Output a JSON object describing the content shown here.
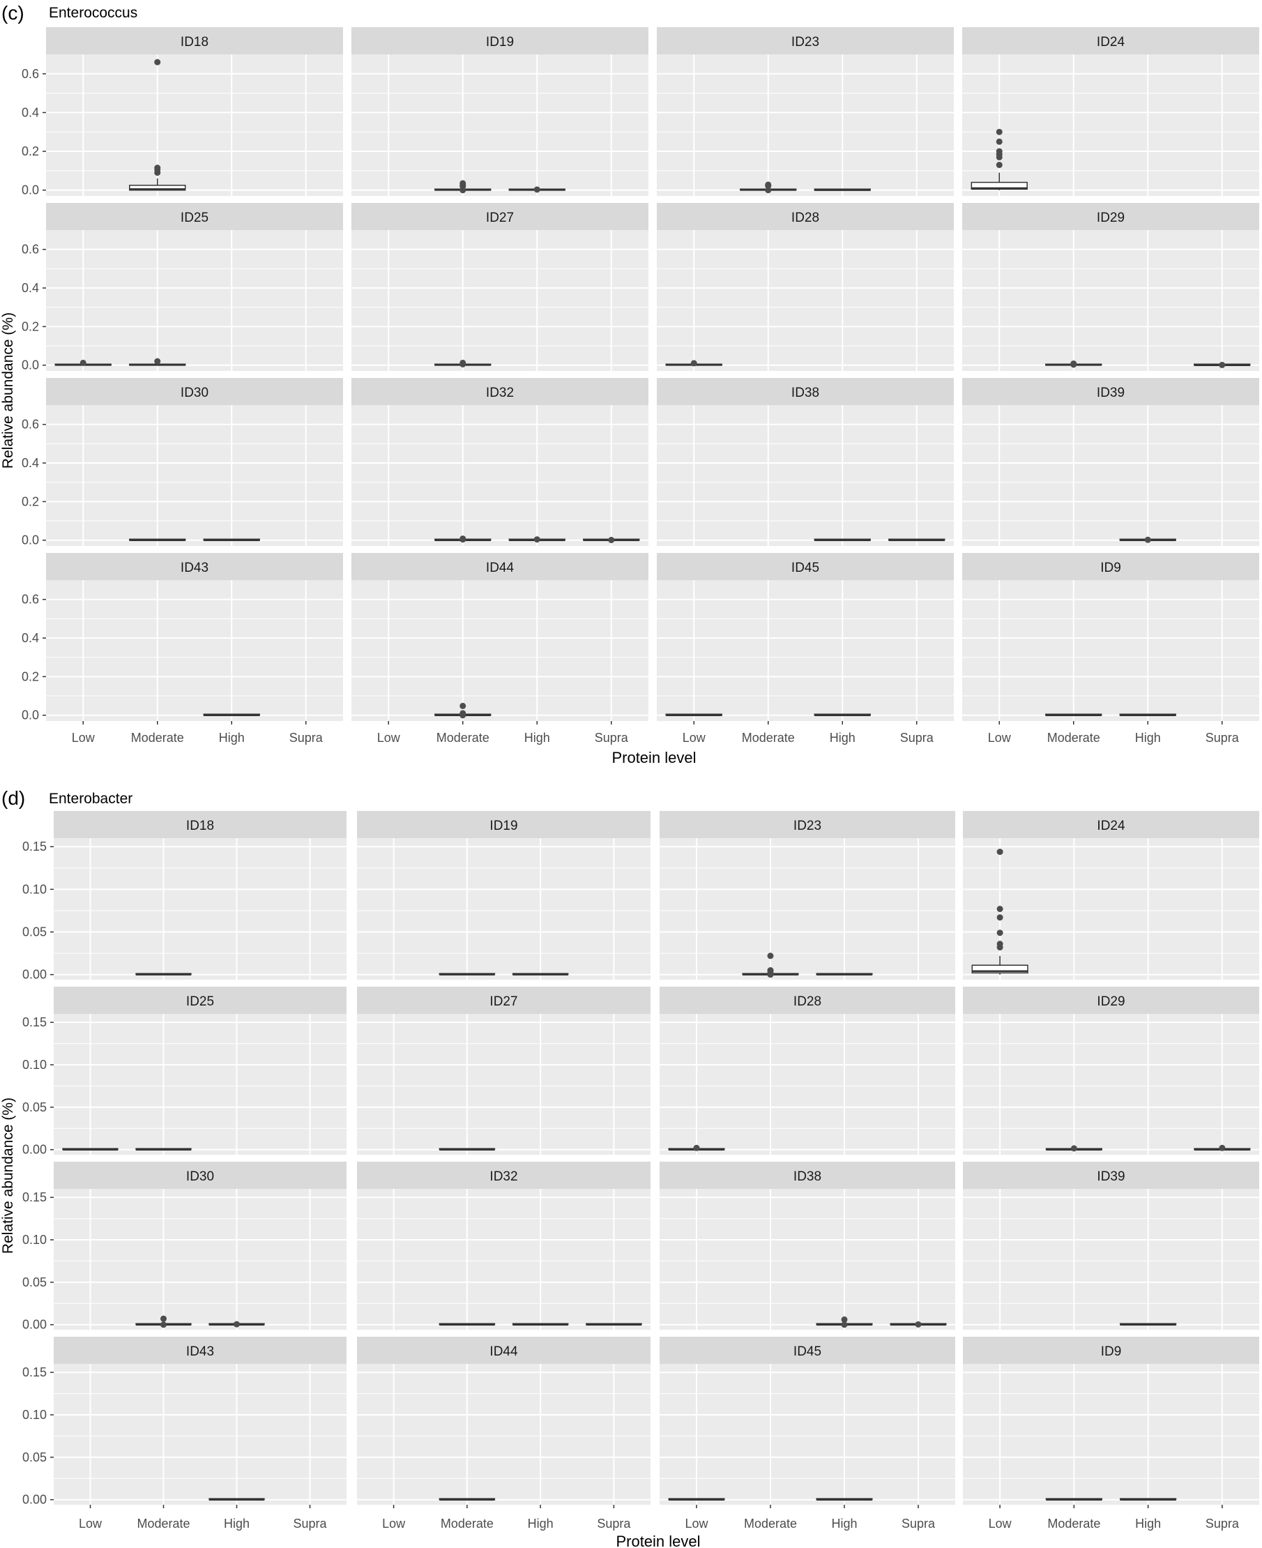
{
  "chart_data": [
    {
      "type": "boxplot",
      "panel_label": "(c)",
      "title": "Enterococcus",
      "xlabel": "Protein level",
      "ylabel": "Relative abundance (%)",
      "ylim": [
        -0.03,
        0.7
      ],
      "yticks": [
        0.0,
        0.2,
        0.4,
        0.6
      ],
      "ytick_labels": [
        "0.0",
        "0.2",
        "0.4",
        "0.6"
      ],
      "categories": [
        "Low",
        "Moderate",
        "High",
        "Supra"
      ],
      "grid": true,
      "facets": [
        {
          "id": "ID18",
          "boxes": [
            {
              "category": "Moderate",
              "q1": 0.0,
              "median": 0.005,
              "q3": 0.025,
              "whisker_low": 0.0,
              "whisker_high": 0.06,
              "outliers": [
                0.66,
                0.115,
                0.105,
                0.09
              ]
            }
          ]
        },
        {
          "id": "ID19",
          "boxes": [
            {
              "category": "Moderate",
              "q1": 0.0,
              "median": 0.001,
              "q3": 0.003,
              "whisker_low": 0.0,
              "whisker_high": 0.005,
              "outliers": [
                0.035,
                0.025,
                0.02,
                0.0
              ]
            },
            {
              "category": "High",
              "q1": 0.0,
              "median": 0.001,
              "q3": 0.003,
              "whisker_low": 0.0,
              "whisker_high": 0.004,
              "outliers": [
                0.003
              ]
            }
          ]
        },
        {
          "id": "ID23",
          "boxes": [
            {
              "category": "Moderate",
              "q1": 0.0,
              "median": 0.001,
              "q3": 0.004,
              "whisker_low": 0.0,
              "whisker_high": 0.006,
              "outliers": [
                0.028,
                0.022,
                0.0
              ]
            },
            {
              "category": "High",
              "q1": 0.0,
              "median": 0.0,
              "q3": 0.001,
              "whisker_low": 0.0,
              "whisker_high": 0.002,
              "outliers": []
            }
          ]
        },
        {
          "id": "ID24",
          "boxes": [
            {
              "category": "Low",
              "q1": 0.005,
              "median": 0.01,
              "q3": 0.04,
              "whisker_low": 0.0,
              "whisker_high": 0.09,
              "outliers": [
                0.3,
                0.25,
                0.2,
                0.185,
                0.17,
                0.13
              ]
            }
          ]
        },
        {
          "id": "ID25",
          "boxes": [
            {
              "category": "Low",
              "q1": 0.0,
              "median": 0.001,
              "q3": 0.004,
              "whisker_low": 0.0,
              "whisker_high": 0.006,
              "outliers": [
                0.012
              ]
            },
            {
              "category": "Moderate",
              "q1": 0.0,
              "median": 0.001,
              "q3": 0.003,
              "whisker_low": 0.0,
              "whisker_high": 0.005,
              "outliers": [
                0.02
              ]
            }
          ]
        },
        {
          "id": "ID27",
          "boxes": [
            {
              "category": "Moderate",
              "q1": 0.0,
              "median": 0.001,
              "q3": 0.003,
              "whisker_low": 0.0,
              "whisker_high": 0.004,
              "outliers": [
                0.012,
                0.005
              ]
            }
          ]
        },
        {
          "id": "ID28",
          "boxes": [
            {
              "category": "Low",
              "q1": 0.0,
              "median": 0.001,
              "q3": 0.003,
              "whisker_low": 0.0,
              "whisker_high": 0.004,
              "outliers": [
                0.01
              ]
            }
          ]
        },
        {
          "id": "ID29",
          "boxes": [
            {
              "category": "Moderate",
              "q1": 0.0,
              "median": 0.001,
              "q3": 0.003,
              "whisker_low": 0.0,
              "whisker_high": 0.004,
              "outliers": [
                0.008,
                0.003
              ]
            },
            {
              "category": "Supra",
              "q1": 0.0,
              "median": 0.0,
              "q3": 0.002,
              "whisker_low": 0.0,
              "whisker_high": 0.003,
              "outliers": [
                0.001
              ]
            }
          ]
        },
        {
          "id": "ID30",
          "boxes": [
            {
              "category": "Moderate",
              "q1": 0.0,
              "median": 0.0,
              "q3": 0.001,
              "whisker_low": 0.0,
              "whisker_high": 0.001,
              "outliers": []
            },
            {
              "category": "High",
              "q1": 0.0,
              "median": 0.0,
              "q3": 0.001,
              "whisker_low": 0.0,
              "whisker_high": 0.001,
              "outliers": []
            }
          ]
        },
        {
          "id": "ID32",
          "boxes": [
            {
              "category": "Moderate",
              "q1": 0.0,
              "median": 0.0,
              "q3": 0.002,
              "whisker_low": 0.0,
              "whisker_high": 0.003,
              "outliers": [
                0.008,
                0.004
              ]
            },
            {
              "category": "High",
              "q1": 0.0,
              "median": 0.0,
              "q3": 0.002,
              "whisker_low": 0.0,
              "whisker_high": 0.003,
              "outliers": [
                0.004
              ]
            },
            {
              "category": "Supra",
              "q1": 0.0,
              "median": 0.0,
              "q3": 0.001,
              "whisker_low": 0.0,
              "whisker_high": 0.002,
              "outliers": [
                0.001
              ]
            }
          ]
        },
        {
          "id": "ID38",
          "boxes": [
            {
              "category": "High",
              "q1": 0.0,
              "median": 0.0,
              "q3": 0.001,
              "whisker_low": 0.0,
              "whisker_high": 0.001,
              "outliers": []
            },
            {
              "category": "Supra",
              "q1": 0.0,
              "median": 0.0,
              "q3": 0.001,
              "whisker_low": 0.0,
              "whisker_high": 0.001,
              "outliers": []
            }
          ]
        },
        {
          "id": "ID39",
          "boxes": [
            {
              "category": "High",
              "q1": 0.0,
              "median": 0.0,
              "q3": 0.001,
              "whisker_low": 0.0,
              "whisker_high": 0.002,
              "outliers": [
                0.002
              ]
            }
          ]
        },
        {
          "id": "ID43",
          "boxes": [
            {
              "category": "High",
              "q1": 0.0,
              "median": 0.0,
              "q3": 0.001,
              "whisker_low": 0.0,
              "whisker_high": 0.001,
              "outliers": []
            }
          ]
        },
        {
          "id": "ID44",
          "boxes": [
            {
              "category": "Moderate",
              "q1": 0.0,
              "median": 0.0,
              "q3": 0.003,
              "whisker_low": 0.0,
              "whisker_high": 0.005,
              "outliers": [
                0.048,
                0.01,
                0.0
              ]
            }
          ]
        },
        {
          "id": "ID45",
          "boxes": [
            {
              "category": "Low",
              "q1": 0.0,
              "median": 0.0,
              "q3": 0.001,
              "whisker_low": 0.0,
              "whisker_high": 0.001,
              "outliers": []
            },
            {
              "category": "High",
              "q1": 0.0,
              "median": 0.0,
              "q3": 0.001,
              "whisker_low": 0.0,
              "whisker_high": 0.001,
              "outliers": []
            }
          ]
        },
        {
          "id": "ID9",
          "boxes": [
            {
              "category": "Moderate",
              "q1": 0.0,
              "median": 0.0,
              "q3": 0.001,
              "whisker_low": 0.0,
              "whisker_high": 0.001,
              "outliers": []
            },
            {
              "category": "High",
              "q1": 0.0,
              "median": 0.0,
              "q3": 0.001,
              "whisker_low": 0.0,
              "whisker_high": 0.001,
              "outliers": []
            }
          ]
        }
      ]
    },
    {
      "type": "boxplot",
      "panel_label": "(d)",
      "title": "Enterobacter",
      "xlabel": "Protein level",
      "ylabel": "Relative abundance (%)",
      "ylim": [
        -0.006,
        0.16
      ],
      "yticks": [
        0.0,
        0.05,
        0.1,
        0.15
      ],
      "ytick_labels": [
        "0.00",
        "0.05",
        "0.10",
        "0.15"
      ],
      "categories": [
        "Low",
        "Moderate",
        "High",
        "Supra"
      ],
      "grid": true,
      "facets": [
        {
          "id": "ID18",
          "boxes": [
            {
              "category": "Moderate",
              "q1": 0.0,
              "median": 0.0,
              "q3": 0.0002,
              "whisker_low": 0.0,
              "whisker_high": 0.0003,
              "outliers": []
            }
          ]
        },
        {
          "id": "ID19",
          "boxes": [
            {
              "category": "Moderate",
              "q1": 0.0,
              "median": 0.0,
              "q3": 0.0002,
              "whisker_low": 0.0,
              "whisker_high": 0.0003,
              "outliers": []
            },
            {
              "category": "High",
              "q1": 0.0,
              "median": 0.0,
              "q3": 0.0002,
              "whisker_low": 0.0,
              "whisker_high": 0.0003,
              "outliers": []
            }
          ]
        },
        {
          "id": "ID23",
          "boxes": [
            {
              "category": "Moderate",
              "q1": 0.0,
              "median": 0.0,
              "q3": 0.0005,
              "whisker_low": 0.0,
              "whisker_high": 0.001,
              "outliers": [
                0.022,
                0.005,
                0.003,
                0.0
              ]
            },
            {
              "category": "High",
              "q1": 0.0,
              "median": 0.0,
              "q3": 0.0002,
              "whisker_low": 0.0,
              "whisker_high": 0.0003,
              "outliers": []
            }
          ]
        },
        {
          "id": "ID24",
          "boxes": [
            {
              "category": "Low",
              "q1": 0.002,
              "median": 0.004,
              "q3": 0.011,
              "whisker_low": 0.0,
              "whisker_high": 0.022,
              "outliers": [
                0.144,
                0.077,
                0.067,
                0.049,
                0.036,
                0.032
              ]
            }
          ]
        },
        {
          "id": "ID25",
          "boxes": [
            {
              "category": "Low",
              "q1": 0.0,
              "median": 0.0,
              "q3": 0.0002,
              "whisker_low": 0.0,
              "whisker_high": 0.0003,
              "outliers": []
            },
            {
              "category": "Moderate",
              "q1": 0.0,
              "median": 0.0,
              "q3": 0.0002,
              "whisker_low": 0.0,
              "whisker_high": 0.0003,
              "outliers": []
            }
          ]
        },
        {
          "id": "ID27",
          "boxes": [
            {
              "category": "Moderate",
              "q1": 0.0,
              "median": 0.0,
              "q3": 0.0002,
              "whisker_low": 0.0,
              "whisker_high": 0.0003,
              "outliers": []
            }
          ]
        },
        {
          "id": "ID28",
          "boxes": [
            {
              "category": "Low",
              "q1": 0.0,
              "median": 0.0,
              "q3": 0.0005,
              "whisker_low": 0.0,
              "whisker_high": 0.0008,
              "outliers": [
                0.002
              ]
            }
          ]
        },
        {
          "id": "ID29",
          "boxes": [
            {
              "category": "Moderate",
              "q1": 0.0,
              "median": 0.0,
              "q3": 0.0005,
              "whisker_low": 0.0,
              "whisker_high": 0.0008,
              "outliers": [
                0.0015
              ]
            },
            {
              "category": "Supra",
              "q1": 0.0,
              "median": 0.0,
              "q3": 0.0005,
              "whisker_low": 0.0,
              "whisker_high": 0.0008,
              "outliers": [
                0.002
              ]
            }
          ]
        },
        {
          "id": "ID30",
          "boxes": [
            {
              "category": "Moderate",
              "q1": 0.0,
              "median": 0.0,
              "q3": 0.0005,
              "whisker_low": 0.0,
              "whisker_high": 0.0008,
              "outliers": [
                0.007,
                0.0
              ]
            },
            {
              "category": "High",
              "q1": 0.0,
              "median": 0.0,
              "q3": 0.0003,
              "whisker_low": 0.0,
              "whisker_high": 0.0005,
              "outliers": [
                0.0005
              ]
            }
          ]
        },
        {
          "id": "ID32",
          "boxes": [
            {
              "category": "Moderate",
              "q1": 0.0,
              "median": 0.0,
              "q3": 0.0002,
              "whisker_low": 0.0,
              "whisker_high": 0.0003,
              "outliers": []
            },
            {
              "category": "High",
              "q1": 0.0,
              "median": 0.0,
              "q3": 0.0002,
              "whisker_low": 0.0,
              "whisker_high": 0.0003,
              "outliers": []
            },
            {
              "category": "Supra",
              "q1": 0.0,
              "median": 0.0,
              "q3": 0.0002,
              "whisker_low": 0.0,
              "whisker_high": 0.0003,
              "outliers": []
            }
          ]
        },
        {
          "id": "ID38",
          "boxes": [
            {
              "category": "High",
              "q1": 0.0,
              "median": 0.0,
              "q3": 0.0005,
              "whisker_low": 0.0,
              "whisker_high": 0.0008,
              "outliers": [
                0.006,
                0.0
              ]
            },
            {
              "category": "Supra",
              "q1": 0.0,
              "median": 0.0,
              "q3": 0.0003,
              "whisker_low": 0.0,
              "whisker_high": 0.0005,
              "outliers": [
                0.0003
              ]
            }
          ]
        },
        {
          "id": "ID39",
          "boxes": [
            {
              "category": "High",
              "q1": 0.0,
              "median": 0.0,
              "q3": 0.0002,
              "whisker_low": 0.0,
              "whisker_high": 0.0003,
              "outliers": []
            }
          ]
        },
        {
          "id": "ID43",
          "boxes": [
            {
              "category": "High",
              "q1": 0.0,
              "median": 0.0,
              "q3": 0.0002,
              "whisker_low": 0.0,
              "whisker_high": 0.0003,
              "outliers": []
            }
          ]
        },
        {
          "id": "ID44",
          "boxes": [
            {
              "category": "Moderate",
              "q1": 0.0,
              "median": 0.0,
              "q3": 0.0002,
              "whisker_low": 0.0,
              "whisker_high": 0.0003,
              "outliers": []
            }
          ]
        },
        {
          "id": "ID45",
          "boxes": [
            {
              "category": "Low",
              "q1": 0.0,
              "median": 0.0,
              "q3": 0.0002,
              "whisker_low": 0.0,
              "whisker_high": 0.0003,
              "outliers": []
            },
            {
              "category": "High",
              "q1": 0.0,
              "median": 0.0,
              "q3": 0.0002,
              "whisker_low": 0.0,
              "whisker_high": 0.0003,
              "outliers": []
            }
          ]
        },
        {
          "id": "ID9",
          "boxes": [
            {
              "category": "Moderate",
              "q1": 0.0,
              "median": 0.0,
              "q3": 0.0002,
              "whisker_low": 0.0,
              "whisker_high": 0.0003,
              "outliers": []
            },
            {
              "category": "High",
              "q1": 0.0,
              "median": 0.0,
              "q3": 0.0002,
              "whisker_low": 0.0,
              "whisker_high": 0.0003,
              "outliers": []
            }
          ]
        }
      ]
    }
  ],
  "style": {
    "panel_bg": "#ebebeb",
    "strip_bg": "#d9d9d9",
    "grid_color": "#ffffff",
    "box_fill": "#ffffff",
    "box_stroke": "#333333",
    "outlier_color": "#4d4d4d",
    "text_color": "#4d4d4d",
    "title_color": "#000000"
  }
}
